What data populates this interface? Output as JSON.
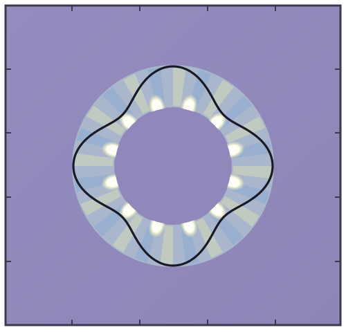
{
  "figure": {
    "frame_color": "#3a3a4c",
    "background_color": "#9088bb",
    "annulus_base_color": "#a9b6cc",
    "ray_color_light": "#dce3b2",
    "ray_color_blue": "#86a6d2",
    "hot_spot_color": "#fffff0",
    "hot_spot_glow_color": "#f2ef9a",
    "contour_color": "#1a1a26",
    "lobe_count": 4,
    "hot_spot_count": 12,
    "ray_count": 24
  }
}
